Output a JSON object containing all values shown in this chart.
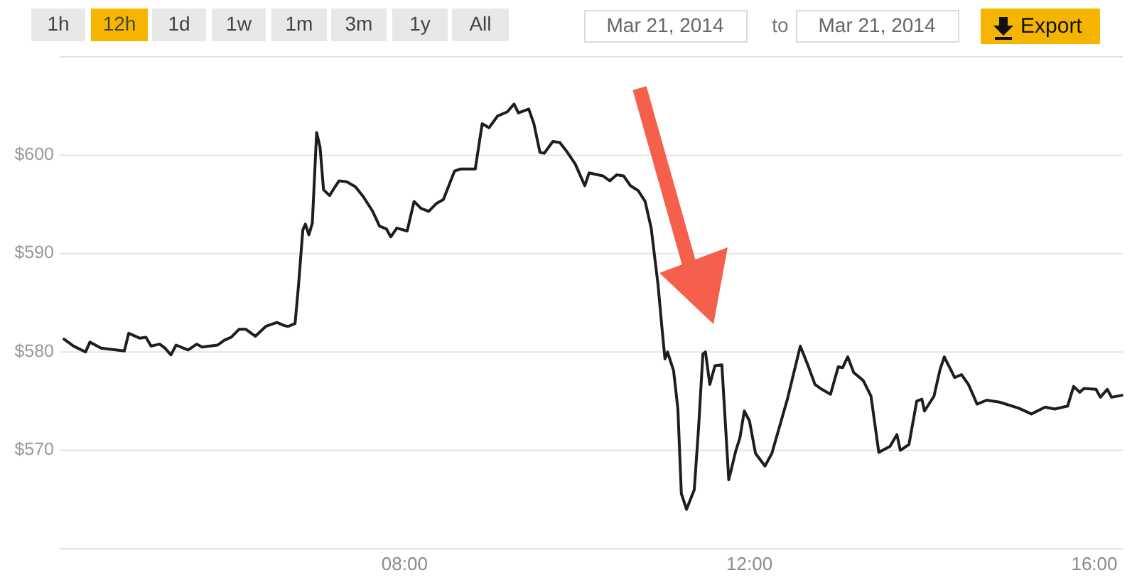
{
  "chart_data": {
    "type": "line",
    "x": [
      4.05,
      4.16,
      4.3,
      4.35,
      4.48,
      4.75,
      4.8,
      4.93,
      5.0,
      5.06,
      5.16,
      5.22,
      5.29,
      5.35,
      5.49,
      5.59,
      5.65,
      5.83,
      5.91,
      5.99,
      6.08,
      6.16,
      6.27,
      6.39,
      6.52,
      6.6,
      6.65,
      6.73,
      6.77,
      6.82,
      6.85,
      6.89,
      6.93,
      6.98,
      7.02,
      7.06,
      7.13,
      7.18,
      7.24,
      7.33,
      7.43,
      7.52,
      7.63,
      7.71,
      7.79,
      7.84,
      7.91,
      8.03,
      8.11,
      8.19,
      8.28,
      8.37,
      8.45,
      8.58,
      8.65,
      8.82,
      8.9,
      8.98,
      9.08,
      9.19,
      9.27,
      9.32,
      9.44,
      9.5,
      9.57,
      9.62,
      9.72,
      9.8,
      9.88,
      9.98,
      10.09,
      10.14,
      10.3,
      10.38,
      10.46,
      10.54,
      10.62,
      10.71,
      10.79,
      10.86,
      10.94,
      10.99,
      11.02,
      11.05,
      11.12,
      11.17,
      11.21,
      11.27,
      11.36,
      11.41,
      11.46,
      11.49,
      11.54,
      11.6,
      11.68,
      11.76,
      11.84,
      11.89,
      11.94,
      12.0,
      12.07,
      12.18,
      12.26,
      12.44,
      12.59,
      12.68,
      12.76,
      12.84,
      12.94,
      13.03,
      13.08,
      13.14,
      13.21,
      13.32,
      13.41,
      13.5,
      13.63,
      13.71,
      13.75,
      13.85,
      13.94,
      14.0,
      14.03,
      14.14,
      14.21,
      14.26,
      14.38,
      14.46,
      14.54,
      14.64,
      14.75,
      14.9,
      15.12,
      15.27,
      15.43,
      15.54,
      15.69,
      15.76,
      15.83,
      15.88,
      16.02,
      16.07,
      16.15,
      16.2,
      16.32
    ],
    "values": [
      581.3,
      580.6,
      580.0,
      581.0,
      580.4,
      580.1,
      581.9,
      581.4,
      581.5,
      580.6,
      580.8,
      580.4,
      579.7,
      580.7,
      580.2,
      580.8,
      580.5,
      580.7,
      581.2,
      581.5,
      582.3,
      582.3,
      581.6,
      582.6,
      583.0,
      582.7,
      582.6,
      582.9,
      586.8,
      592.4,
      593.0,
      591.9,
      593.1,
      602.3,
      600.8,
      596.5,
      595.9,
      596.6,
      597.4,
      597.3,
      596.8,
      595.8,
      594.3,
      592.8,
      592.5,
      591.7,
      592.6,
      592.3,
      595.3,
      594.6,
      594.3,
      595.1,
      595.5,
      598.4,
      598.6,
      598.6,
      603.2,
      602.8,
      604.0,
      604.4,
      605.2,
      604.3,
      604.7,
      603.2,
      600.3,
      600.2,
      601.4,
      601.3,
      600.4,
      599.1,
      596.9,
      598.2,
      597.9,
      597.4,
      598.0,
      597.9,
      596.9,
      596.4,
      595.3,
      592.6,
      586.8,
      582.0,
      579.3,
      580.0,
      578.1,
      574.2,
      565.6,
      564.0,
      566.0,
      572.3,
      579.8,
      580.0,
      576.7,
      578.6,
      578.7,
      567.0,
      569.9,
      571.3,
      574.0,
      573.0,
      569.7,
      568.4,
      569.7,
      575.2,
      580.6,
      578.6,
      576.7,
      576.2,
      575.7,
      578.5,
      578.4,
      579.5,
      577.9,
      577.1,
      575.5,
      569.8,
      570.4,
      571.6,
      570.0,
      570.6,
      575.0,
      575.2,
      574.0,
      575.5,
      578.2,
      579.5,
      577.4,
      577.7,
      576.7,
      574.7,
      575.1,
      574.9,
      574.3,
      573.7,
      574.4,
      574.2,
      574.5,
      576.5,
      575.9,
      576.3,
      576.2,
      575.4,
      576.2,
      575.4,
      575.6
    ],
    "color": "#1e1e1e",
    "line_style": "solid",
    "xlim": [
      4,
      16.33
    ],
    "xticks": [
      {
        "value": 8,
        "label": "08:00"
      },
      {
        "value": 12,
        "label": "12:00"
      },
      {
        "value": 16,
        "label": "16:00"
      }
    ],
    "ylim": [
      560,
      610
    ],
    "yticks": [
      {
        "value": 570,
        "label": "$570"
      },
      {
        "value": 580,
        "label": "$580"
      },
      {
        "value": 590,
        "label": "$590"
      },
      {
        "value": 600,
        "label": "$600"
      }
    ],
    "grid": "y",
    "annotations": [
      "1h",
      "12h",
      "1d",
      "1w",
      "1m",
      "3m",
      "1y",
      "All",
      "Mar 21, 2014",
      "to",
      "Mar 21, 2014",
      "Export"
    ]
  }
}
